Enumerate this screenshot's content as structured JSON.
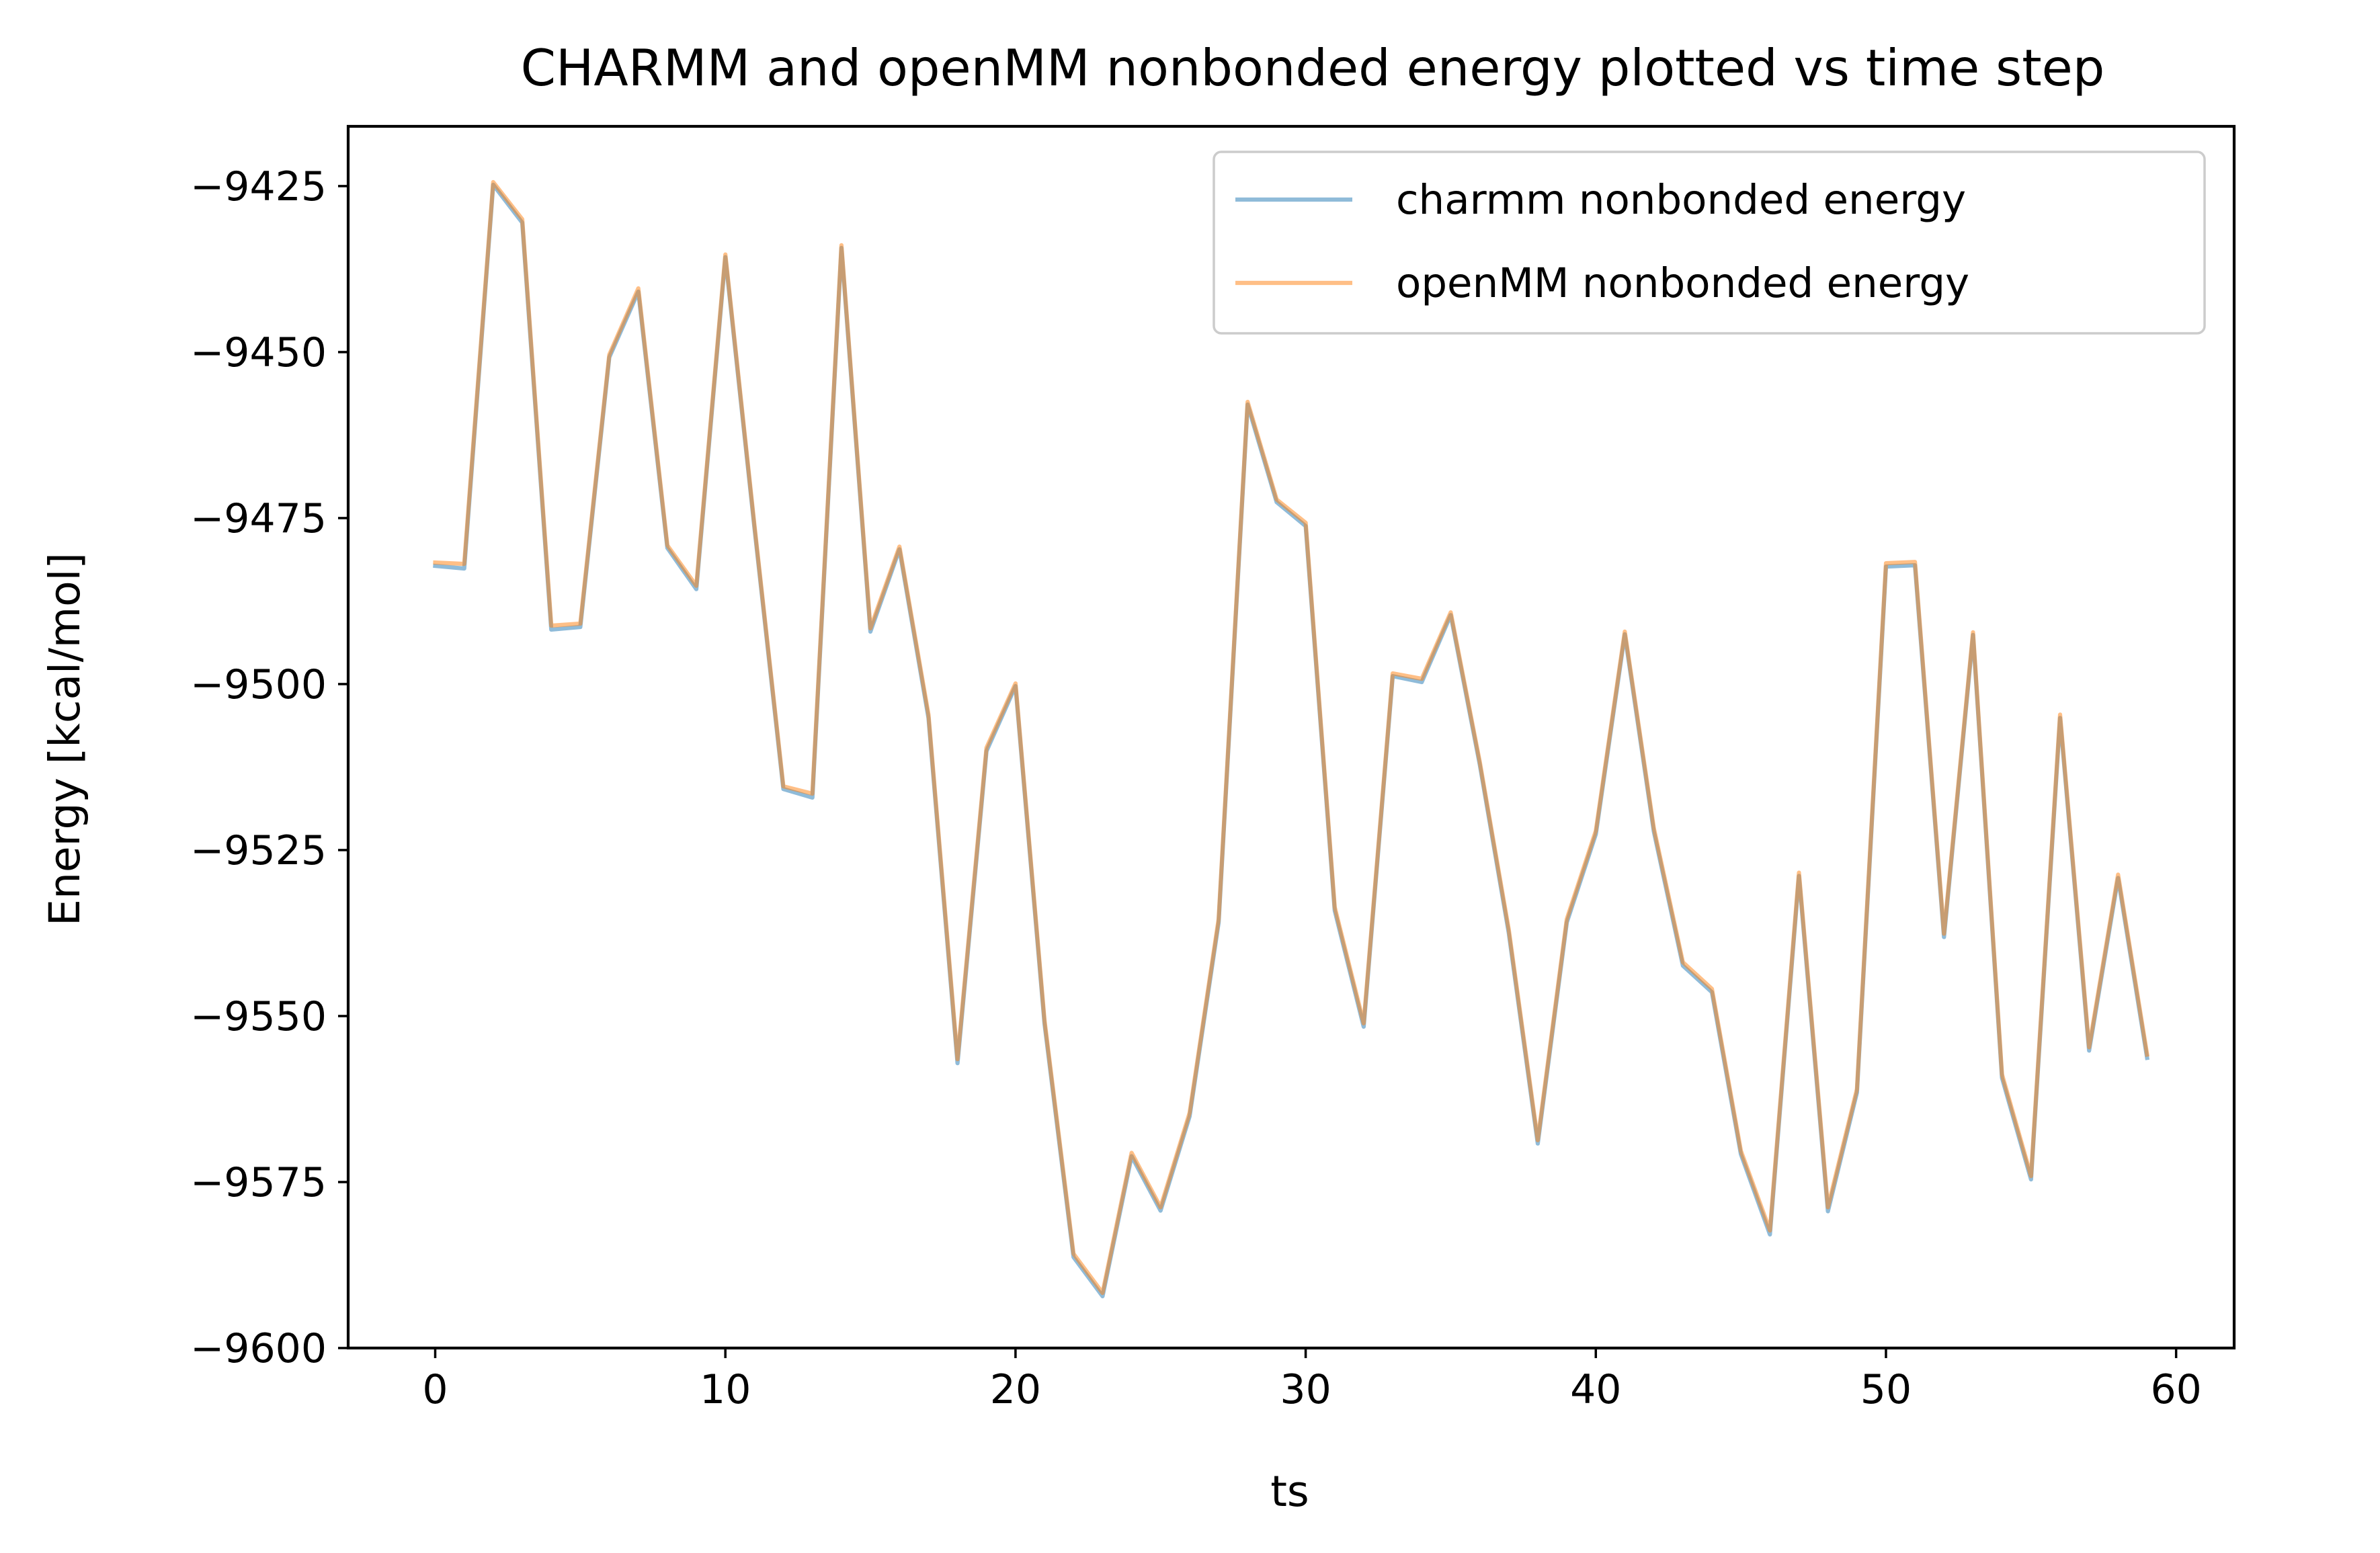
{
  "chart_data": {
    "type": "line",
    "title": "CHARMM and openMM nonbonded energy plotted vs time step",
    "xlabel": "ts",
    "ylabel": "Energy [kcal/mol]",
    "xlim": [
      -3,
      62
    ],
    "ylim": [
      -9600,
      -9416
    ],
    "xticks": [
      0,
      10,
      20,
      30,
      40,
      50,
      60
    ],
    "xtick_labels": [
      "0",
      "10",
      "20",
      "30",
      "40",
      "50",
      "60"
    ],
    "yticks": [
      -9425,
      -9450,
      -9475,
      -9500,
      -9525,
      -9550,
      -9575,
      -9600
    ],
    "ytick_labels": [
      "−9425",
      "−9450",
      "−9475",
      "−9500",
      "−9525",
      "−9550",
      "−9575",
      "−9600"
    ],
    "grid": false,
    "legend_position": "top-right",
    "x": [
      0,
      1,
      2,
      3,
      4,
      5,
      6,
      7,
      8,
      9,
      10,
      11,
      12,
      13,
      14,
      15,
      16,
      17,
      18,
      19,
      20,
      21,
      22,
      23,
      24,
      25,
      26,
      27,
      28,
      29,
      30,
      31,
      32,
      33,
      34,
      35,
      36,
      37,
      38,
      39,
      40,
      41,
      42,
      43,
      44,
      45,
      46,
      47,
      48,
      49,
      50,
      51,
      52,
      53,
      54,
      55,
      56,
      57,
      58,
      59
    ],
    "series": [
      {
        "name": "charmm nonbonded energy",
        "color": "#1f77b4",
        "alpha": 0.5,
        "values": [
          -9482.2,
          -9482.6,
          -9424.8,
          -9430.5,
          -9491.8,
          -9491.4,
          -9450.8,
          -9440.9,
          -9479.5,
          -9485.7,
          -9435.7,
          -9476.4,
          -9515.8,
          -9517.1,
          -9434.3,
          -9492.1,
          -9479.7,
          -9505.1,
          -9557.1,
          -9510.1,
          -9500.3,
          -9551.2,
          -9586.3,
          -9592.2,
          -9571.1,
          -9579.3,
          -9565.1,
          -9535.9,
          -9457.9,
          -9472.6,
          -9476.2,
          -9534.1,
          -9551.6,
          -9498.8,
          -9499.7,
          -9489.6,
          -9512.1,
          -9537.5,
          -9569.2,
          -9535.9,
          -9522.6,
          -9492.5,
          -9522.2,
          -9542.4,
          -9546.4,
          -9570.8,
          -9582.9,
          -9528.9,
          -9579.4,
          -9561.5,
          -9482.3,
          -9482.1,
          -9538.1,
          -9492.6,
          -9559.3,
          -9574.6,
          -9505.1,
          -9555.2,
          -9529.2,
          -9556.3
        ]
      },
      {
        "name": "openMM nonbonded energy",
        "color": "#ff7f0e",
        "alpha": 0.5,
        "values": [
          -9481.7,
          -9481.9,
          -9424.4,
          -9430.0,
          -9491.2,
          -9490.9,
          -9450.4,
          -9440.4,
          -9479.1,
          -9485.2,
          -9435.3,
          -9476.0,
          -9515.4,
          -9516.5,
          -9433.9,
          -9491.6,
          -9479.3,
          -9504.6,
          -9556.5,
          -9509.6,
          -9499.9,
          -9550.7,
          -9585.8,
          -9591.7,
          -9570.6,
          -9578.8,
          -9564.6,
          -9535.4,
          -9457.5,
          -9472.2,
          -9475.7,
          -9533.6,
          -9551.1,
          -9498.4,
          -9499.2,
          -9489.2,
          -9511.7,
          -9537.0,
          -9568.7,
          -9535.4,
          -9522.1,
          -9492.1,
          -9521.7,
          -9541.9,
          -9545.9,
          -9570.3,
          -9582.3,
          -9528.4,
          -9578.8,
          -9561.0,
          -9481.8,
          -9481.6,
          -9537.6,
          -9492.2,
          -9558.8,
          -9574.1,
          -9504.6,
          -9554.7,
          -9528.7,
          -9555.8
        ]
      }
    ]
  }
}
